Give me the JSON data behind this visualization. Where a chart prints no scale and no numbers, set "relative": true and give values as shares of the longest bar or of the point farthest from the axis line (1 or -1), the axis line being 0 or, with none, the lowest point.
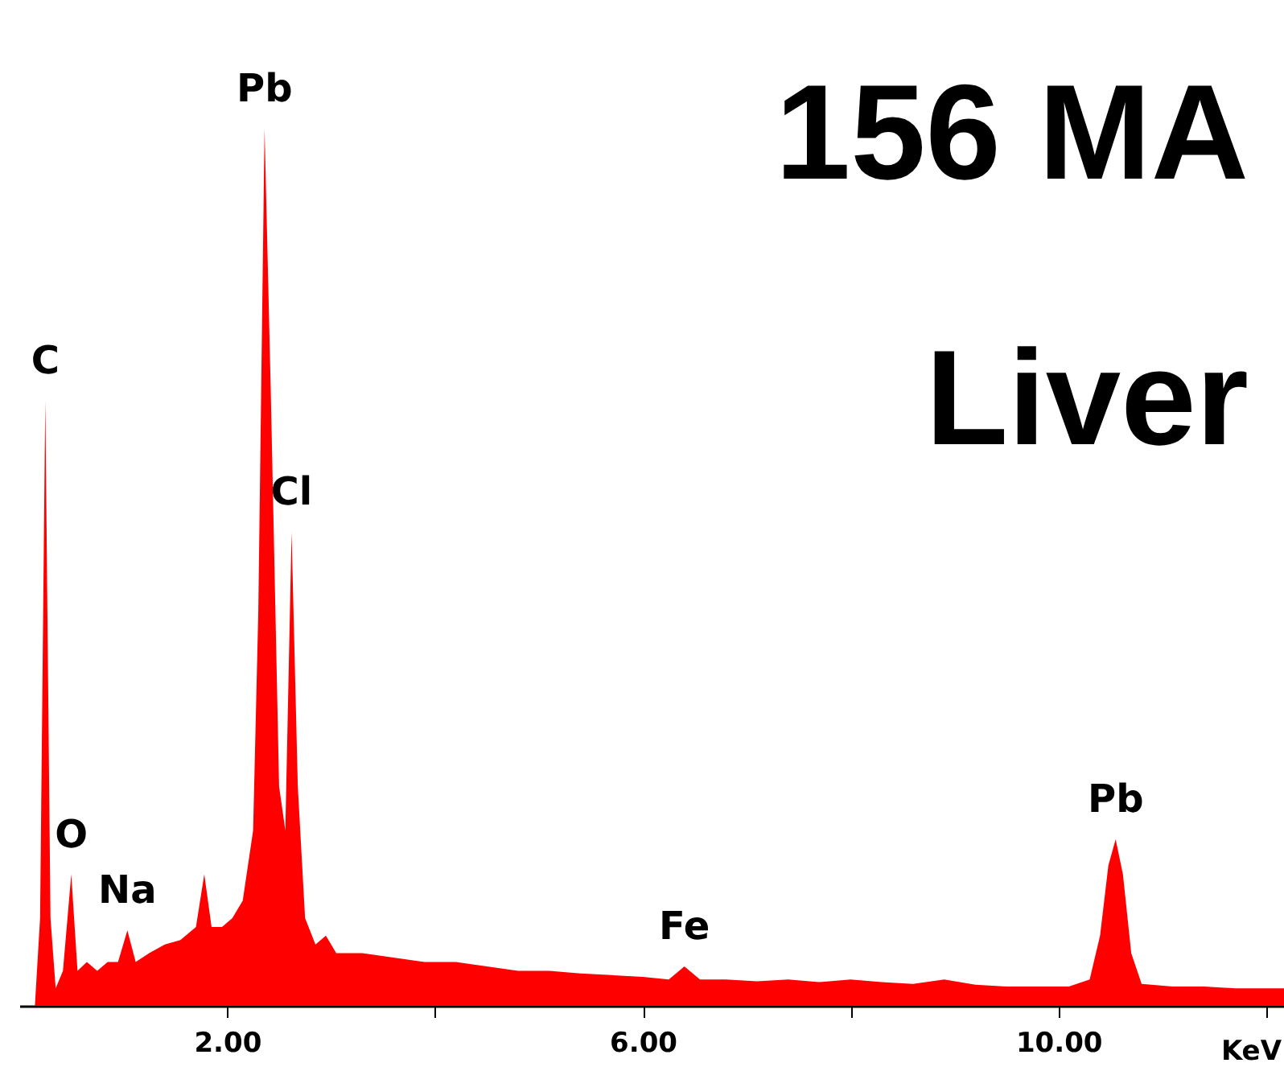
{
  "chart_data": {
    "type": "area",
    "title": "156 MA",
    "subtitle": "Liver",
    "xlabel": "KeV",
    "relative": true,
    "xlim": [
      0,
      12.17
    ],
    "xticks": [
      {
        "value": 2,
        "label": "2.00"
      },
      {
        "value": 4,
        "label": null
      },
      {
        "value": 6,
        "label": "6.00"
      },
      {
        "value": 8,
        "label": null
      },
      {
        "value": 10,
        "label": "10.00"
      },
      {
        "value": 12,
        "label": null
      }
    ],
    "x": [
      0.15,
      0.2,
      0.25,
      0.3,
      0.35,
      0.42,
      0.5,
      0.56,
      0.65,
      0.75,
      0.85,
      0.95,
      1.04,
      1.12,
      1.25,
      1.4,
      1.55,
      1.7,
      1.78,
      1.85,
      1.95,
      2.05,
      2.15,
      2.25,
      2.3,
      2.36,
      2.42,
      2.5,
      2.56,
      2.62,
      2.68,
      2.75,
      2.85,
      2.95,
      3.05,
      3.3,
      3.6,
      3.9,
      4.2,
      4.5,
      4.8,
      5.1,
      5.4,
      5.7,
      6.0,
      6.25,
      6.4,
      6.55,
      6.8,
      7.1,
      7.4,
      7.7,
      8.0,
      8.3,
      8.6,
      8.9,
      9.2,
      9.5,
      9.8,
      10.1,
      10.3,
      10.4,
      10.48,
      10.55,
      10.62,
      10.7,
      10.8,
      11.1,
      11.4,
      11.7,
      12.0,
      12.17
    ],
    "series": [
      {
        "color": "#ff0000",
        "values": [
          0,
          0.1,
          0.69,
          0.1,
          0.02,
          0.04,
          0.15,
          0.04,
          0.05,
          0.04,
          0.05,
          0.05,
          0.086,
          0.05,
          0.06,
          0.07,
          0.075,
          0.09,
          0.15,
          0.09,
          0.09,
          0.1,
          0.12,
          0.2,
          0.45,
          1.0,
          0.7,
          0.25,
          0.2,
          0.54,
          0.25,
          0.1,
          0.07,
          0.08,
          0.06,
          0.06,
          0.055,
          0.05,
          0.05,
          0.045,
          0.04,
          0.04,
          0.037,
          0.035,
          0.033,
          0.03,
          0.045,
          0.03,
          0.03,
          0.028,
          0.03,
          0.027,
          0.03,
          0.027,
          0.025,
          0.03,
          0.024,
          0.022,
          0.022,
          0.022,
          0.03,
          0.08,
          0.16,
          0.19,
          0.15,
          0.06,
          0.025,
          0.022,
          0.022,
          0.02,
          0.02,
          0.02
        ]
      }
    ],
    "annotations": [
      {
        "text": "C",
        "x": 0.25,
        "y": 0.69
      },
      {
        "text": "O",
        "x": 0.5,
        "y": 0.15
      },
      {
        "text": "Na",
        "x": 1.04,
        "y": 0.086
      },
      {
        "text": "Pb",
        "x": 2.36,
        "y": 1.0
      },
      {
        "text": "Cl",
        "x": 2.62,
        "y": 0.54
      },
      {
        "text": "Fe",
        "x": 6.4,
        "y": 0.045
      },
      {
        "text": "Pb",
        "x": 10.55,
        "y": 0.19
      }
    ]
  }
}
